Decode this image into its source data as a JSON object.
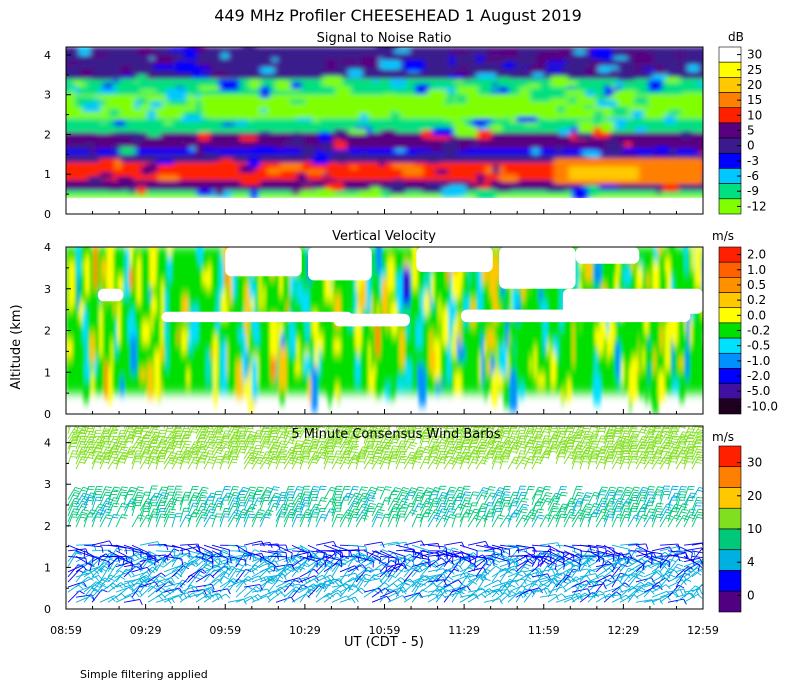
{
  "figure": {
    "title": "449 MHz Profiler CHEESEHEAD   1 August 2019",
    "ylabel": "Altitude (km)",
    "xlabel": "UT  (CDT - 5)",
    "xticks": [
      "08:59",
      "09:29",
      "09:59",
      "10:29",
      "10:59",
      "11:29",
      "11:59",
      "12:29",
      "12:59"
    ],
    "footnote": "Simple filtering applied"
  },
  "chart_data": [
    {
      "id": "snr",
      "type": "heatmap",
      "title": "Signal to Noise Ratio",
      "units": "dB",
      "ylim": [
        0,
        4.2
      ],
      "yticks": [
        0,
        1,
        2,
        3,
        4
      ],
      "colorbar": {
        "labels": [
          "30",
          "25",
          "20",
          "15",
          "10",
          "5",
          "0",
          "-3",
          "-6",
          "-9",
          "-12"
        ],
        "colors": [
          "#ffffff",
          "#ffff00",
          "#ffc800",
          "#ff8000",
          "#ff2000",
          "#580080",
          "#3a1a8c",
          "#0000ff",
          "#00c8ff",
          "#00e080",
          "#80ff00"
        ]
      },
      "layers": [
        {
          "from": 0.4,
          "to": 0.5,
          "value": -12
        },
        {
          "from": 0.5,
          "to": 0.6,
          "value": -9
        },
        {
          "from": 0.6,
          "to": 0.85,
          "value": 5
        },
        {
          "from": 0.85,
          "to": 1.3,
          "value": 10
        },
        {
          "from": 1.3,
          "to": 1.5,
          "value": 0
        },
        {
          "from": 1.5,
          "to": 1.65,
          "value": -3
        },
        {
          "from": 1.65,
          "to": 2.05,
          "value": 5
        },
        {
          "from": 2.05,
          "to": 2.4,
          "value": -9
        },
        {
          "from": 2.4,
          "to": 3.0,
          "value": -12
        },
        {
          "from": 3.0,
          "to": 3.4,
          "value": -9
        },
        {
          "from": 3.4,
          "to": 4.2,
          "value": 0
        }
      ]
    },
    {
      "id": "vertical_velocity",
      "type": "heatmap",
      "title": "Vertical Velocity",
      "units": "m/s",
      "ylim": [
        0,
        4.0
      ],
      "yticks": [
        0,
        1,
        2,
        3,
        4
      ],
      "colorbar": {
        "labels": [
          "2.0",
          "1.0",
          "0.5",
          "0.2",
          "0.0",
          "-0.2",
          "-0.5",
          "-1.0",
          "-2.0",
          "-5.0",
          "-10.0"
        ],
        "colors": [
          "#ff2000",
          "#ff6000",
          "#ff9000",
          "#ffc800",
          "#ffff00",
          "#00e000",
          "#00e0ff",
          "#0090ff",
          "#0000ff",
          "#4010a0",
          "#200020"
        ]
      },
      "data_range": [
        0.5,
        4.0
      ],
      "dominant_value": -0.2
    },
    {
      "id": "wind_barbs",
      "type": "scatter",
      "title": "5 Minute Consensus Wind Barbs",
      "units": "m/s",
      "ylim": [
        0,
        4.4
      ],
      "yticks": [
        0,
        1,
        2,
        3,
        4
      ],
      "colorbar": {
        "labels": [
          "30",
          "20",
          "10",
          "4",
          "0"
        ],
        "colors": [
          "#ff2000",
          "#ff8000",
          "#ffc800",
          "#80e020",
          "#00c878",
          "#00b0e0",
          "#0000ff",
          "#500080"
        ]
      },
      "layers": [
        {
          "from": 0.1,
          "to": 1.2,
          "speed": 5
        },
        {
          "from": 1.2,
          "to": 1.6,
          "speed": 3
        },
        {
          "from": 1.9,
          "to": 2.7,
          "speed": 8
        },
        {
          "from": 3.3,
          "to": 4.4,
          "speed": 12
        }
      ]
    }
  ]
}
